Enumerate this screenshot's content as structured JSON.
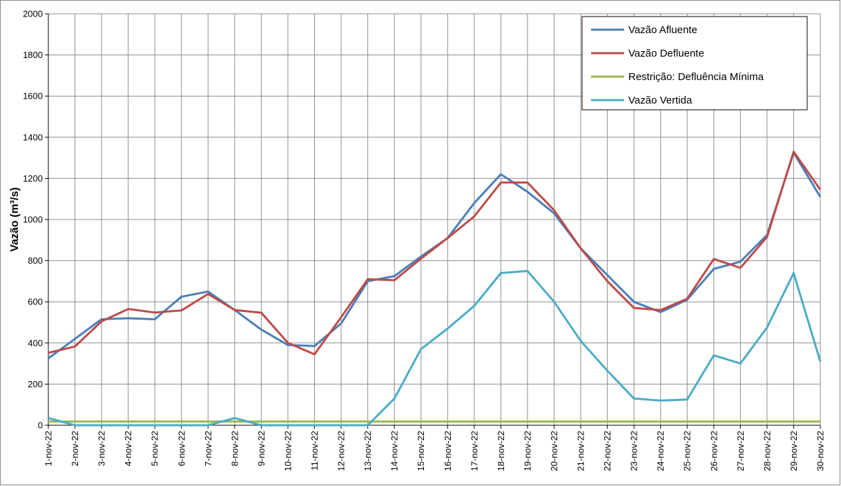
{
  "chart_data": {
    "type": "line",
    "ylabel": "Vazão (m³/s)",
    "xlabel": "",
    "ylim": [
      0,
      2000
    ],
    "yticks": [
      0,
      200,
      400,
      600,
      800,
      1000,
      1200,
      1400,
      1600,
      1800,
      2000
    ],
    "grid": true,
    "legend_position": "top-right",
    "categories": [
      "1-nov-22",
      "2-nov-22",
      "3-nov-22",
      "4-nov-22",
      "5-nov-22",
      "6-nov-22",
      "7-nov-22",
      "8-nov-22",
      "9-nov-22",
      "10-nov-22",
      "11-nov-22",
      "12-nov-22",
      "13-nov-22",
      "14-nov-22",
      "15-nov-22",
      "16-nov-22",
      "17-nov-22",
      "18-nov-22",
      "19-nov-22",
      "20-nov-22",
      "21-nov-22",
      "22-nov-22",
      "23-nov-22",
      "24-nov-22",
      "25-nov-22",
      "26-nov-22",
      "27-nov-22",
      "28-nov-22",
      "29-nov-22",
      "30-nov-22"
    ],
    "series": [
      {
        "name": "Vazão Afluente",
        "color": "#4a7ebb",
        "values": [
          325,
          420,
          515,
          520,
          515,
          625,
          650,
          560,
          465,
          390,
          385,
          495,
          700,
          725,
          820,
          910,
          1080,
          1220,
          1135,
          1030,
          860,
          730,
          600,
          550,
          610,
          760,
          795,
          925,
          1325,
          1110
        ]
      },
      {
        "name": "Vazão Defluente",
        "color": "#be4b48",
        "values": [
          352,
          383,
          505,
          565,
          548,
          558,
          638,
          560,
          547,
          400,
          345,
          525,
          710,
          705,
          810,
          910,
          1015,
          1180,
          1180,
          1045,
          860,
          700,
          570,
          560,
          615,
          808,
          765,
          915,
          1330,
          1145
        ]
      },
      {
        "name": "Restrição: Defluência Mínima",
        "color": "#98b954",
        "values": [
          18,
          18,
          18,
          18,
          18,
          18,
          18,
          18,
          18,
          18,
          18,
          18,
          18,
          18,
          18,
          18,
          18,
          18,
          18,
          18,
          18,
          18,
          18,
          18,
          18,
          18,
          18,
          18,
          18,
          18
        ]
      },
      {
        "name": "Vazão Vertida",
        "color": "#4bacc6",
        "values": [
          35,
          0,
          0,
          0,
          0,
          0,
          0,
          35,
          0,
          0,
          0,
          0,
          0,
          130,
          370,
          470,
          580,
          740,
          750,
          600,
          410,
          265,
          130,
          120,
          125,
          340,
          300,
          475,
          740,
          310
        ]
      }
    ]
  }
}
